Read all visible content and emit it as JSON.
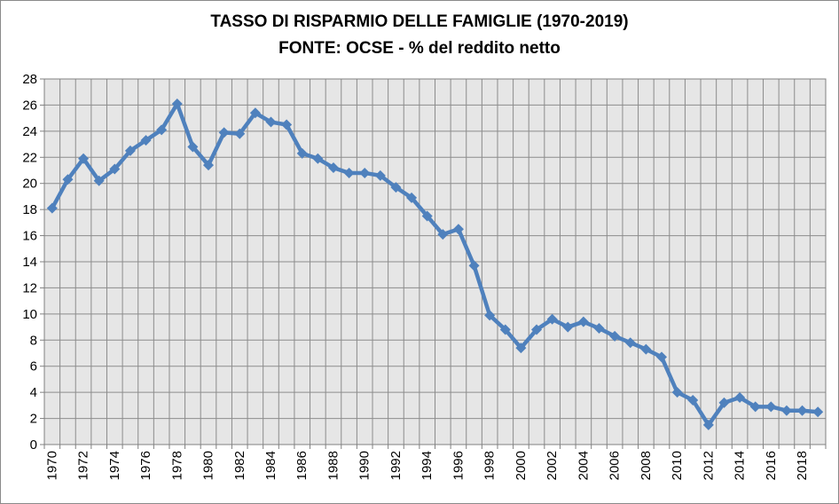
{
  "chart_data": {
    "type": "line",
    "title": "TASSO DI RISPARMIO DELLE FAMIGLIE (1970-2019)",
    "subtitle": "FONTE: OCSE - % del reddito netto",
    "xlabel": "",
    "ylabel": "",
    "ylim": [
      0,
      28
    ],
    "yticks": [
      "0",
      "2",
      "4",
      "6",
      "8",
      "10",
      "12",
      "14",
      "16",
      "18",
      "20",
      "22",
      "24",
      "26",
      "28"
    ],
    "xlim": [
      1970,
      2019
    ],
    "xticks": [
      "1970",
      "1972",
      "1974",
      "1976",
      "1978",
      "1980",
      "1982",
      "1984",
      "1986",
      "1988",
      "1990",
      "1992",
      "1994",
      "1996",
      "1998",
      "2000",
      "2002",
      "2004",
      "2006",
      "2008",
      "2010",
      "2012",
      "2014",
      "2016",
      "2018"
    ],
    "grid": true,
    "legend": "none",
    "colors": {
      "line": "#4f81bd",
      "plot_bg": "#e6e6e6",
      "grid": "#8c8c8c"
    },
    "series": [
      {
        "x": [
          1970,
          1971,
          1972,
          1973,
          1974,
          1975,
          1976,
          1977,
          1978,
          1979,
          1980,
          1981,
          1982,
          1983,
          1984,
          1985,
          1986,
          1987,
          1988,
          1989,
          1990,
          1991,
          1992,
          1993,
          1994,
          1995,
          1996,
          1997,
          1998,
          1999,
          2000,
          2001,
          2002,
          2003,
          2004,
          2005,
          2006,
          2007,
          2008,
          2009,
          2010,
          2011,
          2012,
          2013,
          2014,
          2015,
          2016,
          2017,
          2018,
          2019
        ],
        "values": [
          18.1,
          20.3,
          21.9,
          20.2,
          21.1,
          22.5,
          23.3,
          24.1,
          26.1,
          22.8,
          21.4,
          23.9,
          23.8,
          25.4,
          24.7,
          24.5,
          22.3,
          21.9,
          21.2,
          20.8,
          20.8,
          20.6,
          19.7,
          18.9,
          17.5,
          16.1,
          16.5,
          13.7,
          9.9,
          8.8,
          7.4,
          8.8,
          9.6,
          9.0,
          9.4,
          8.9,
          8.3,
          7.8,
          7.3,
          6.7,
          4.0,
          3.4,
          1.5,
          3.2,
          3.6,
          2.9,
          2.9,
          2.6,
          2.6,
          2.5
        ]
      }
    ]
  }
}
